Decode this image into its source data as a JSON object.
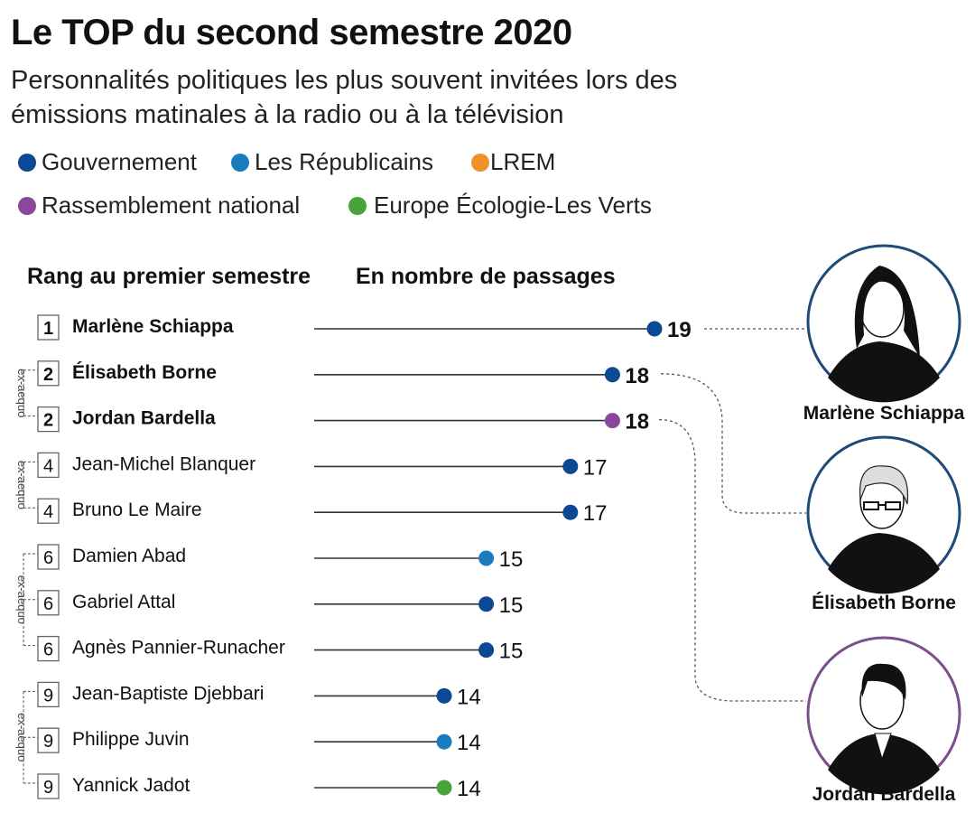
{
  "title": "Le TOP du second semestre 2020",
  "subtitle": "Personnalités politiques les plus souvent invitées lors des émissions matinales à la radio ou à la télévision",
  "legend": [
    {
      "label": "Gouvernement",
      "color": "#0b4a93"
    },
    {
      "label": "Les Républicains",
      "color": "#1a7bbf"
    },
    {
      "label": "LREM",
      "color": "#f0922a"
    },
    {
      "label": "Rassemblement national",
      "color": "#8a479b"
    },
    {
      "label": "Europe Écologie-Les Verts",
      "color": "#4aa33a"
    }
  ],
  "headers": {
    "rank": "Rang au premier semestre",
    "value": "En nombre de passages"
  },
  "exaequo_label": "ex-aequo",
  "portraits": [
    {
      "name": "Marlène Schiappa",
      "border_color": "#1d4a78",
      "row": 0
    },
    {
      "name": "Élisabeth Borne",
      "border_color": "#1d4a78",
      "row": 1
    },
    {
      "name": "Jordan Bardella",
      "border_color": "#7a4f8a",
      "row": 2
    }
  ],
  "chart_data": {
    "type": "lollipop",
    "title": "Le TOP du second semestre 2020",
    "xlabel": "En nombre de passages",
    "ylabel": "Rang au premier semestre",
    "xlim": [
      11.4,
      19
    ],
    "grid": false,
    "legend_position": "top-left",
    "rows": [
      {
        "rank": 1,
        "name": "Marlène Schiappa",
        "value": 19,
        "group": "Gouvernement",
        "bold": true
      },
      {
        "rank": 2,
        "name": "Élisabeth Borne",
        "value": 18,
        "group": "Gouvernement",
        "bold": true
      },
      {
        "rank": 2,
        "name": "Jordan Bardella",
        "value": 18,
        "group": "Rassemblement national",
        "bold": true
      },
      {
        "rank": 4,
        "name": "Jean-Michel Blanquer",
        "value": 17,
        "group": "Gouvernement",
        "bold": false
      },
      {
        "rank": 4,
        "name": "Bruno Le Maire",
        "value": 17,
        "group": "Gouvernement",
        "bold": false
      },
      {
        "rank": 6,
        "name": "Damien Abad",
        "value": 15,
        "group": "Les Républicains",
        "bold": false
      },
      {
        "rank": 6,
        "name": "Gabriel Attal",
        "value": 15,
        "group": "Gouvernement",
        "bold": false
      },
      {
        "rank": 6,
        "name": "Agnès Pannier-Runacher",
        "value": 15,
        "group": "Gouvernement",
        "bold": false
      },
      {
        "rank": 9,
        "name": "Jean-Baptiste Djebbari",
        "value": 14,
        "group": "Gouvernement",
        "bold": false
      },
      {
        "rank": 9,
        "name": "Philippe Juvin",
        "value": 14,
        "group": "Les Républicains",
        "bold": false
      },
      {
        "rank": 9,
        "name": "Yannick Jadot",
        "value": 14,
        "group": "Europe Écologie-Les Verts",
        "bold": false
      }
    ],
    "exaequo_groups": [
      [
        1,
        2
      ],
      [
        3,
        4
      ],
      [
        5,
        6,
        7
      ],
      [
        8,
        9,
        10
      ]
    ]
  }
}
